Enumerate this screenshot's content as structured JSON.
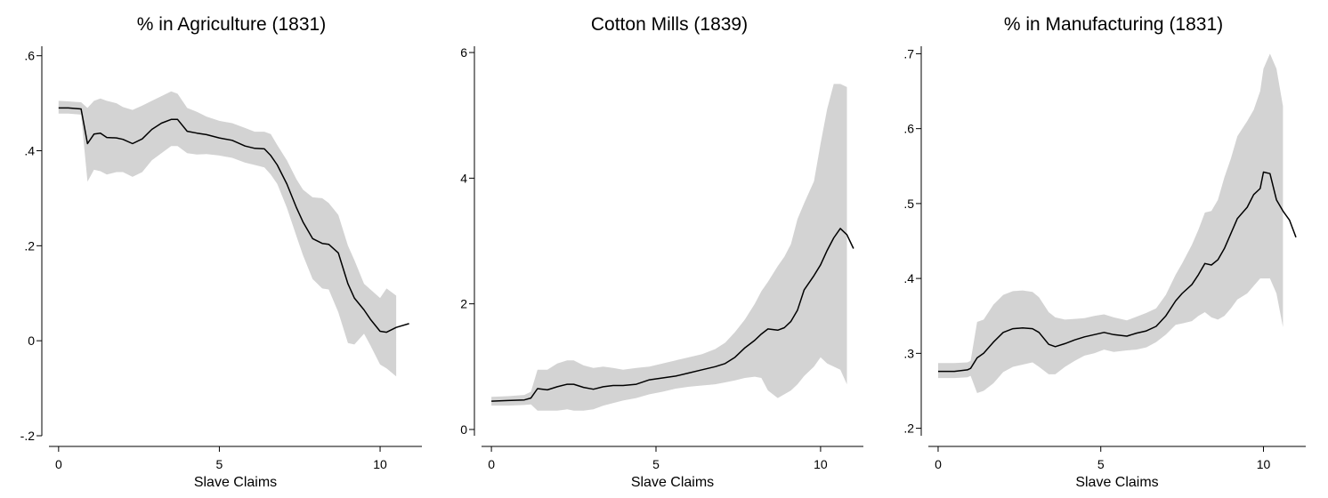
{
  "chart_data": [
    {
      "type": "line",
      "title": "% in Agriculture (1831)",
      "xlabel": "Slave Claims",
      "ylabel": "",
      "xlim": [
        -0.3,
        11.3
      ],
      "ylim": [
        -0.2,
        0.62
      ],
      "xticks": [
        0,
        5,
        10
      ],
      "xtick_labels": [
        "0",
        "5",
        "10"
      ],
      "yticks": [
        -0.2,
        0,
        0.2,
        0.4,
        0.6
      ],
      "ytick_labels": [
        "-.2",
        "0",
        ".2",
        ".4",
        ".6"
      ],
      "grid": false,
      "series": [
        {
          "x": [
            0,
            0.3,
            0.7,
            0.9,
            1.1,
            1.3,
            1.5,
            1.8,
            2.0,
            2.3,
            2.6,
            2.9,
            3.2,
            3.5,
            3.7,
            4.0,
            4.3,
            4.6,
            5.0,
            5.4,
            5.8,
            6.1,
            6.4,
            6.6,
            6.8,
            7.1,
            7.4,
            7.6,
            7.9,
            8.2,
            8.4,
            8.7,
            9.0,
            9.2,
            9.5,
            9.7,
            10.0,
            10.2,
            10.5,
            10.9
          ],
          "y": [
            0.49,
            0.49,
            0.488,
            0.415,
            0.435,
            0.437,
            0.428,
            0.427,
            0.424,
            0.415,
            0.425,
            0.445,
            0.458,
            0.466,
            0.466,
            0.441,
            0.437,
            0.434,
            0.427,
            0.422,
            0.41,
            0.405,
            0.404,
            0.39,
            0.37,
            0.33,
            0.28,
            0.25,
            0.215,
            0.205,
            0.203,
            0.185,
            0.12,
            0.09,
            0.065,
            0.045,
            0.02,
            0.018,
            0.028,
            0.036
          ],
          "lower": [
            0.478,
            0.478,
            0.476,
            0.335,
            0.36,
            0.357,
            0.35,
            0.355,
            0.355,
            0.345,
            0.355,
            0.38,
            0.395,
            0.41,
            0.41,
            0.395,
            0.392,
            0.393,
            0.39,
            0.385,
            0.375,
            0.37,
            0.365,
            0.35,
            0.33,
            0.28,
            0.22,
            0.18,
            0.13,
            0.11,
            0.108,
            0.06,
            -0.005,
            -0.008,
            0.015,
            -0.01,
            -0.05,
            -0.058,
            -0.075,
            null
          ],
          "upper": [
            0.505,
            0.504,
            0.502,
            0.49,
            0.505,
            0.51,
            0.505,
            0.5,
            0.492,
            0.486,
            0.495,
            0.505,
            0.515,
            0.525,
            0.52,
            0.49,
            0.482,
            0.472,
            0.463,
            0.458,
            0.448,
            0.44,
            0.44,
            0.435,
            0.412,
            0.38,
            0.34,
            0.318,
            0.302,
            0.3,
            0.29,
            0.265,
            0.2,
            0.17,
            0.12,
            0.108,
            0.09,
            0.11,
            0.095,
            null
          ]
        }
      ]
    },
    {
      "type": "line",
      "title": "Cotton Mills (1839)",
      "xlabel": "Slave Claims",
      "ylabel": "",
      "xlim": [
        -0.3,
        11.3
      ],
      "ylim": [
        -0.1,
        6.1
      ],
      "xticks": [
        0,
        5,
        10
      ],
      "xtick_labels": [
        "0",
        "5",
        "10"
      ],
      "yticks": [
        0,
        2,
        4,
        6
      ],
      "ytick_labels": [
        "0",
        "2",
        "4",
        "6"
      ],
      "grid": false,
      "series": [
        {
          "x": [
            0,
            0.5,
            1.0,
            1.2,
            1.4,
            1.7,
            2.0,
            2.3,
            2.5,
            2.8,
            3.1,
            3.4,
            3.7,
            4.0,
            4.4,
            4.8,
            5.2,
            5.6,
            6.0,
            6.4,
            6.8,
            7.1,
            7.4,
            7.7,
            8.0,
            8.2,
            8.4,
            8.7,
            8.9,
            9.1,
            9.3,
            9.5,
            9.8,
            10.0,
            10.2,
            10.4,
            10.6,
            10.8,
            11.0
          ],
          "y": [
            0.45,
            0.46,
            0.47,
            0.5,
            0.65,
            0.63,
            0.68,
            0.72,
            0.72,
            0.67,
            0.64,
            0.68,
            0.7,
            0.7,
            0.72,
            0.79,
            0.82,
            0.85,
            0.9,
            0.95,
            1.0,
            1.05,
            1.15,
            1.3,
            1.42,
            1.52,
            1.6,
            1.58,
            1.62,
            1.72,
            1.9,
            2.22,
            2.45,
            2.62,
            2.85,
            3.05,
            3.2,
            3.1,
            2.88
          ],
          "lower": [
            0.38,
            0.38,
            0.39,
            0.4,
            0.3,
            0.3,
            0.3,
            0.32,
            0.3,
            0.3,
            0.32,
            0.38,
            0.42,
            0.46,
            0.5,
            0.56,
            0.6,
            0.65,
            0.68,
            0.7,
            0.72,
            0.75,
            0.78,
            0.82,
            0.84,
            0.82,
            0.62,
            0.5,
            0.56,
            0.62,
            0.72,
            0.85,
            1.0,
            1.15,
            1.05,
            1.0,
            0.95,
            0.72,
            null
          ],
          "upper": [
            0.52,
            0.53,
            0.55,
            0.6,
            0.95,
            0.95,
            1.05,
            1.1,
            1.1,
            1.02,
            0.98,
            1.0,
            0.98,
            0.95,
            0.98,
            1.0,
            1.05,
            1.1,
            1.15,
            1.2,
            1.28,
            1.38,
            1.55,
            1.75,
            2.0,
            2.2,
            2.35,
            2.6,
            2.75,
            2.95,
            3.35,
            3.6,
            3.95,
            4.55,
            5.1,
            5.5,
            5.5,
            5.45,
            null
          ]
        }
      ]
    },
    {
      "type": "line",
      "title": "% in Manufacturing (1831)",
      "xlabel": "Slave Claims",
      "ylabel": "",
      "xlim": [
        -0.3,
        11.3
      ],
      "ylim": [
        0.19,
        0.71
      ],
      "xticks": [
        0,
        5,
        10
      ],
      "xtick_labels": [
        "0",
        "5",
        "10"
      ],
      "yticks": [
        0.2,
        0.3,
        0.4,
        0.5,
        0.6,
        0.7
      ],
      "ytick_labels": [
        ".2",
        ".3",
        ".4",
        ".5",
        ".6",
        ".7"
      ],
      "grid": false,
      "series": [
        {
          "x": [
            0,
            0.5,
            0.9,
            1.0,
            1.2,
            1.4,
            1.7,
            2.0,
            2.3,
            2.6,
            2.9,
            3.1,
            3.4,
            3.6,
            3.9,
            4.2,
            4.5,
            4.8,
            5.1,
            5.4,
            5.8,
            6.1,
            6.4,
            6.7,
            7.0,
            7.3,
            7.5,
            7.8,
            8.0,
            8.2,
            8.4,
            8.6,
            8.8,
            9.0,
            9.2,
            9.5,
            9.7,
            9.9,
            10.0,
            10.2,
            10.4,
            10.6,
            10.8,
            11.0
          ],
          "y": [
            0.276,
            0.276,
            0.278,
            0.28,
            0.294,
            0.3,
            0.315,
            0.328,
            0.333,
            0.334,
            0.333,
            0.328,
            0.312,
            0.309,
            0.313,
            0.318,
            0.322,
            0.325,
            0.328,
            0.325,
            0.323,
            0.327,
            0.33,
            0.336,
            0.35,
            0.37,
            0.38,
            0.392,
            0.405,
            0.42,
            0.418,
            0.425,
            0.44,
            0.46,
            0.48,
            0.495,
            0.512,
            0.52,
            0.542,
            0.54,
            0.505,
            0.49,
            0.478,
            0.455
          ],
          "lower": [
            0.267,
            0.267,
            0.268,
            0.27,
            0.247,
            0.25,
            0.26,
            0.275,
            0.282,
            0.285,
            0.288,
            0.282,
            0.272,
            0.272,
            0.282,
            0.29,
            0.297,
            0.3,
            0.305,
            0.302,
            0.304,
            0.305,
            0.308,
            0.315,
            0.325,
            0.338,
            0.34,
            0.343,
            0.35,
            0.355,
            0.348,
            0.345,
            0.35,
            0.36,
            0.372,
            0.38,
            0.39,
            0.4,
            0.4,
            0.4,
            0.38,
            0.335,
            null,
            null
          ],
          "upper": [
            0.287,
            0.287,
            0.288,
            0.29,
            0.342,
            0.345,
            0.365,
            0.378,
            0.383,
            0.384,
            0.382,
            0.375,
            0.355,
            0.348,
            0.345,
            0.346,
            0.347,
            0.35,
            0.352,
            0.348,
            0.344,
            0.349,
            0.354,
            0.36,
            0.378,
            0.405,
            0.42,
            0.445,
            0.465,
            0.488,
            0.49,
            0.505,
            0.535,
            0.56,
            0.59,
            0.61,
            0.625,
            0.65,
            0.68,
            0.7,
            0.68,
            0.63,
            null,
            null
          ]
        }
      ]
    }
  ]
}
